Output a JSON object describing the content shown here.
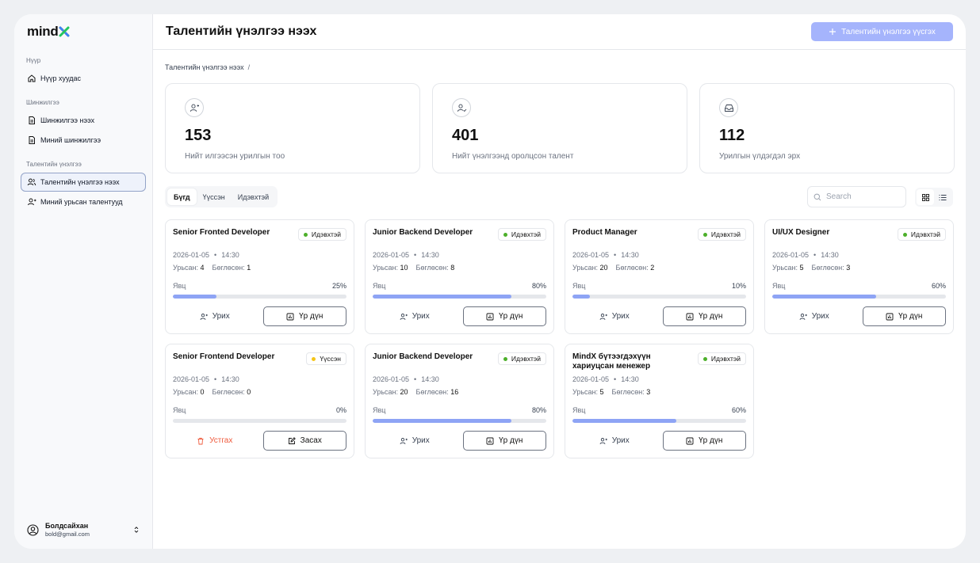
{
  "app": {
    "logo_text": "mind"
  },
  "sidebar": {
    "sections": [
      {
        "label": "Нүүр",
        "items": [
          {
            "label": "Нүүр хуудас",
            "icon": "home-icon"
          }
        ]
      },
      {
        "label": "Шинжилгээ",
        "items": [
          {
            "label": "Шинжилгээ нээх",
            "icon": "document-icon"
          },
          {
            "label": "Миний шинжилгээ",
            "icon": "document-icon"
          }
        ]
      },
      {
        "label": "Талентийн үнэлгээ",
        "items": [
          {
            "label": "Талентийн үнэлгээ нээх",
            "icon": "users-icon",
            "active": true
          },
          {
            "label": "Миний урьсан талентууд",
            "icon": "user-icon"
          }
        ]
      }
    ],
    "user": {
      "name": "Болдсайхан",
      "email": "bold@gmail.com"
    }
  },
  "header": {
    "title": "Талентийн үнэлгээ нээх",
    "create_button": "Талентийн үнэлгээ үүсгэх"
  },
  "breadcrumb": {
    "current": "Талентийн үнэлгээ нээх",
    "separator": "/"
  },
  "stats": [
    {
      "value": "153",
      "label": "Нийт илгээсэн урилгын тоо",
      "icon": "user-plus-icon"
    },
    {
      "value": "401",
      "label": "Нийт үнэлгээнд оролцсон талент",
      "icon": "user-check-icon"
    },
    {
      "value": "112",
      "label": "Урилгын үлдэгдэл эрх",
      "icon": "inbox-icon"
    }
  ],
  "filters": {
    "tabs": [
      "Бүгд",
      "Үүссэн",
      "Идэвхтэй"
    ],
    "active": 0
  },
  "search": {
    "placeholder": "Search"
  },
  "labels": {
    "invited": "Урьсан:",
    "filled": "Бөглөсөн:",
    "progress": "Явц",
    "invite": "Урих",
    "result": "Үр дүн",
    "delete": "Устгах",
    "edit": "Засах",
    "bullet": "•"
  },
  "colors": {
    "active": "#4caf2a",
    "created": "#f5c518",
    "accent": "#8ea4f5",
    "danger": "#ef5a3c"
  },
  "cards": [
    {
      "title": "Senior Fronted Developer",
      "status": "Идэвхтэй",
      "status_type": "active",
      "date": "2026-01-05",
      "time": "14:30",
      "invited": "4",
      "filled": "1",
      "progress": 25,
      "progress_text": "25%"
    },
    {
      "title": "Junior Backend Developer",
      "status": "Идэвхтэй",
      "status_type": "active",
      "date": "2026-01-05",
      "time": "14:30",
      "invited": "10",
      "filled": "8",
      "progress": 80,
      "progress_text": "80%"
    },
    {
      "title": "Product Manager",
      "status": "Идэвхтэй",
      "status_type": "active",
      "date": "2026-01-05",
      "time": "14:30",
      "invited": "20",
      "filled": "2",
      "progress": 10,
      "progress_text": "10%"
    },
    {
      "title": "UI/UX Designer",
      "status": "Идэвхтэй",
      "status_type": "active",
      "date": "2026-01-05",
      "time": "14:30",
      "invited": "5",
      "filled": "3",
      "progress": 60,
      "progress_text": "60%"
    },
    {
      "title": "Senior Frontend Developer",
      "status": "Үүссэн",
      "status_type": "created",
      "date": "2026-01-05",
      "time": "14:30",
      "invited": "0",
      "filled": "0",
      "progress": 0,
      "progress_text": "0%"
    },
    {
      "title": "Junior Backend Developer",
      "status": "Идэвхтэй",
      "status_type": "active",
      "date": "2026-01-05",
      "time": "14:30",
      "invited": "20",
      "filled": "16",
      "progress": 80,
      "progress_text": "80%"
    },
    {
      "title": "MindX  бүтээгдэхүүн хариуцсан  менежер",
      "status": "Идэвхтэй",
      "status_type": "active",
      "date": "2026-01-05",
      "time": "14:30",
      "invited": "5",
      "filled": "3",
      "progress": 60,
      "progress_text": "60%"
    }
  ]
}
